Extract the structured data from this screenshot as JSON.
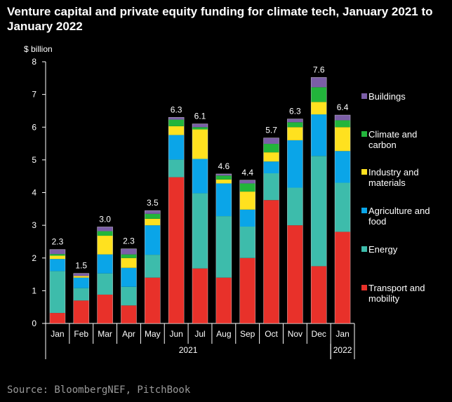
{
  "title": "Venture capital and private equity funding for climate tech, January 2021 to January 2022",
  "source": "Source: BloombergNEF, PitchBook",
  "chart_data": {
    "type": "bar",
    "stacked": true,
    "title": "Venture capital and private equity funding for climate tech, January 2021 to January 2022",
    "ylabel": "$ billion",
    "xlabel": "",
    "ylim": [
      0,
      8
    ],
    "yticks": [
      "0",
      "1",
      "2",
      "3",
      "4",
      "5",
      "6",
      "7",
      "8"
    ],
    "grid": false,
    "legend_position": "right",
    "categories": [
      "Jan",
      "Feb",
      "Mar",
      "Apr",
      "May",
      "Jun",
      "Jul",
      "Aug",
      "Sep",
      "Oct",
      "Nov",
      "Dec",
      "Jan"
    ],
    "year_groups": [
      {
        "label": "2021",
        "start": 0,
        "end": 11
      },
      {
        "label": "2022",
        "start": 12,
        "end": 12
      }
    ],
    "totals": [
      "2.3",
      "1.5",
      "3.0",
      "2.3",
      "3.5",
      "6.3",
      "6.1",
      "4.6",
      "4.4",
      "5.7",
      "6.3",
      "7.6",
      "6.4"
    ],
    "series": [
      {
        "name": "Transport and mobility",
        "color": "#e8312a",
        "values": [
          0.32,
          0.7,
          0.88,
          0.55,
          1.4,
          4.47,
          1.68,
          1.4,
          2.0,
          3.77,
          3.0,
          1.75,
          2.8
        ]
      },
      {
        "name": "Energy",
        "color": "#3dbcab",
        "values": [
          1.28,
          0.38,
          0.65,
          0.57,
          0.7,
          0.54,
          2.3,
          1.88,
          0.96,
          0.82,
          1.15,
          3.37,
          1.5
        ]
      },
      {
        "name": "Agriculture and food",
        "color": "#0aa5e8",
        "values": [
          0.37,
          0.32,
          0.58,
          0.58,
          0.9,
          0.75,
          1.05,
          1.0,
          0.52,
          0.36,
          1.45,
          1.27,
          0.97
        ]
      },
      {
        "name": "Industry and materials",
        "color": "#ffe11f",
        "values": [
          0.1,
          0.05,
          0.57,
          0.3,
          0.2,
          0.27,
          0.9,
          0.12,
          0.55,
          0.28,
          0.4,
          0.38,
          0.73
        ]
      },
      {
        "name": "Climate and carbon",
        "color": "#22b53b",
        "values": [
          0.05,
          0.0,
          0.14,
          0.11,
          0.15,
          0.2,
          0.07,
          0.12,
          0.25,
          0.26,
          0.15,
          0.45,
          0.21
        ]
      },
      {
        "name": "Buildings",
        "color": "#7b5ea7",
        "values": [
          0.14,
          0.08,
          0.13,
          0.17,
          0.1,
          0.07,
          0.1,
          0.05,
          0.1,
          0.18,
          0.1,
          0.3,
          0.16
        ]
      }
    ],
    "legend_order": [
      "Buildings",
      "Climate and carbon",
      "Industry and materials",
      "Agriculture and food",
      "Energy",
      "Transport and mobility"
    ],
    "legend_lines": {
      "Buildings": [
        "Buildings"
      ],
      "Climate and carbon": [
        "Climate and",
        "carbon"
      ],
      "Industry and materials": [
        "Industry and",
        "materials"
      ],
      "Agriculture and food": [
        "Agriculture and",
        "food"
      ],
      "Energy": [
        "Energy"
      ],
      "Transport and mobility": [
        "Transport and",
        "mobility"
      ]
    }
  }
}
